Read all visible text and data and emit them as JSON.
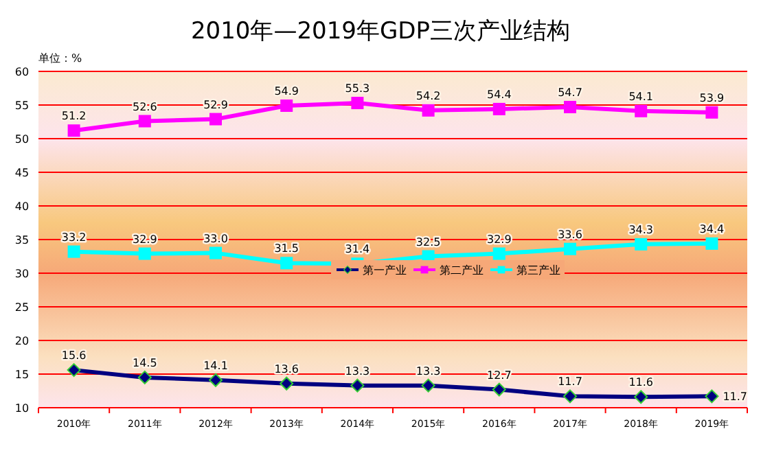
{
  "chart_data": {
    "type": "line",
    "title": "2010年—2019年GDP三次产业结构",
    "ylabel": "单位：%",
    "categories": [
      "2010年",
      "2011年",
      "2012年",
      "2013年",
      "2014年",
      "2015年",
      "2016年",
      "2017年",
      "2018年",
      "2019年"
    ],
    "series": [
      {
        "name": "第一产业",
        "color": "#000080",
        "marker": "diamond",
        "values": [
          15.6,
          14.5,
          14.1,
          13.6,
          13.3,
          13.3,
          12.7,
          11.7,
          11.6,
          11.7
        ]
      },
      {
        "name": "第二产业",
        "color": "#ff00ff",
        "marker": "square",
        "values": [
          51.2,
          52.6,
          52.9,
          54.9,
          55.3,
          54.2,
          54.4,
          54.7,
          54.1,
          53.9
        ]
      },
      {
        "name": "第三产业",
        "color": "#00ffff",
        "marker": "square",
        "values": [
          33.2,
          32.9,
          33.0,
          31.5,
          31.4,
          32.5,
          32.9,
          33.6,
          34.3,
          34.4
        ],
        "value_labels": [
          "33.2",
          "32.9",
          "33.0",
          "31.5",
          "31.4",
          "32.5",
          "32.9",
          "33.6",
          "34.3",
          "34.4"
        ]
      }
    ],
    "ylim": [
      10,
      60
    ],
    "yticks": [
      10,
      15,
      20,
      25,
      30,
      35,
      40,
      45,
      50,
      55,
      60
    ],
    "grid": "y",
    "legend": "center",
    "data_labels": true,
    "line_style": "solid"
  }
}
